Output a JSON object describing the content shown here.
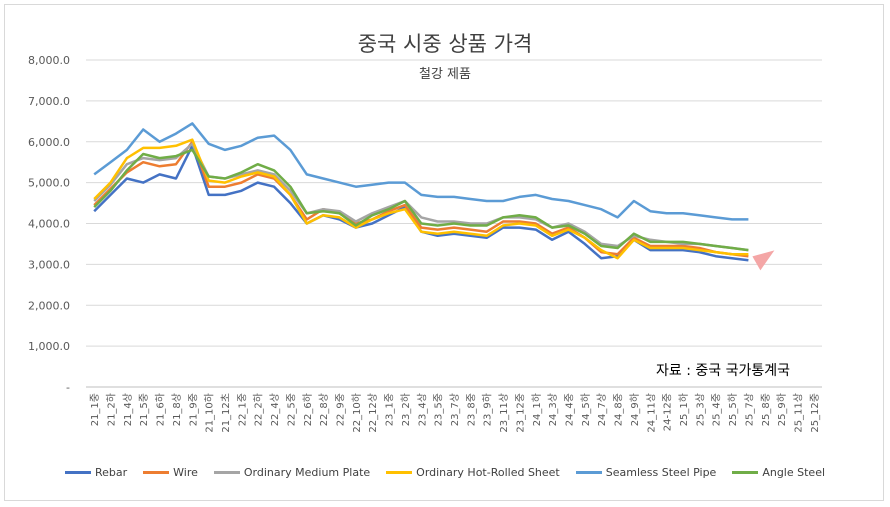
{
  "chart_data": {
    "type": "line",
    "title": "중국 시중 상품 가격",
    "subtitle": "철강 제품",
    "source_note": "자료 : 중국 국가통계국",
    "ylim": [
      0,
      8000
    ],
    "y_ticks": [
      "-",
      "1,000.0",
      "2,000.0",
      "3,000.0",
      "4,000.0",
      "5,000.0",
      "6,000.0",
      "7,000.0",
      "8,000.0"
    ],
    "grid": "horizontal",
    "legend_position": "bottom",
    "x_labels": [
      "21_1중",
      "21_2하",
      "21_4상",
      "21_5중",
      "21_6하",
      "21_8상",
      "21_9중",
      "21_10하",
      "21_12초",
      "22_1중",
      "22_2하",
      "22_4상",
      "22_5중",
      "22_6하",
      "22_8상",
      "22_9중",
      "22_10하",
      "22_12상",
      "23_1중",
      "23_2하",
      "23_4상",
      "23_5중",
      "23_7상",
      "23_8중",
      "23_9하",
      "23_11상",
      "23_12중",
      "24_1하",
      "24_3상",
      "24_4중",
      "24_5하",
      "24_7상",
      "24_8중",
      "24_9하",
      "24_11상",
      "24-12중",
      "25_1하",
      "25_3상",
      "25_4중",
      "25_5하",
      "25_7상",
      "25_8중",
      "25_9하",
      "25_11상",
      "25_12중"
    ],
    "series": [
      {
        "name": "Rebar",
        "color": "#4472C4",
        "values": [
          4300,
          4700,
          5100,
          5000,
          5200,
          5100,
          5900,
          4700,
          4700,
          4800,
          5000,
          4900,
          4500,
          4000,
          4200,
          4100,
          3900,
          4000,
          4200,
          4400,
          3800,
          3700,
          3750,
          3700,
          3650,
          3900,
          3900,
          3850,
          3600,
          3800,
          3500,
          3150,
          3200,
          3600,
          3350,
          3350,
          3350,
          3300,
          3200,
          3150,
          3100,
          null,
          null,
          null,
          null
        ]
      },
      {
        "name": "Wire",
        "color": "#ED7D31",
        "values": [
          4450,
          4850,
          5250,
          5500,
          5400,
          5450,
          6000,
          4900,
          4900,
          5000,
          5200,
          5100,
          4700,
          4100,
          4350,
          4250,
          4000,
          4100,
          4300,
          4450,
          3900,
          3850,
          3900,
          3850,
          3800,
          4050,
          4050,
          4000,
          3750,
          3900,
          3650,
          3300,
          3250,
          3650,
          3450,
          3450,
          3450,
          3400,
          3300,
          3250,
          3200,
          null,
          null,
          null,
          null
        ]
      },
      {
        "name": "Ordinary Medium Plate",
        "color": "#A5A5A5",
        "values": [
          4550,
          4950,
          5450,
          5600,
          5550,
          5600,
          5950,
          5150,
          5100,
          5200,
          5300,
          5200,
          4800,
          4250,
          4350,
          4300,
          4050,
          4250,
          4400,
          4550,
          4150,
          4050,
          4050,
          4000,
          4000,
          4150,
          4150,
          4100,
          3900,
          4000,
          3800,
          3500,
          3450,
          3700,
          3600,
          3550,
          3500,
          3500,
          3450,
          3400,
          3350,
          null,
          null,
          null,
          null
        ]
      },
      {
        "name": "Ordinary Hot-Rolled Sheet",
        "color": "#FFC000",
        "values": [
          4600,
          5000,
          5600,
          5850,
          5850,
          5900,
          6050,
          5050,
          5000,
          5150,
          5250,
          5150,
          4700,
          4000,
          4200,
          4150,
          3900,
          4100,
          4250,
          4350,
          3800,
          3750,
          3800,
          3750,
          3700,
          3950,
          4000,
          3950,
          3700,
          3850,
          3650,
          3350,
          3150,
          3600,
          3400,
          3400,
          3400,
          3350,
          3300,
          3250,
          3250,
          null,
          null,
          null,
          null
        ]
      },
      {
        "name": "Seamless Steel Pipe",
        "color": "#5B9BD5",
        "values": [
          5200,
          5500,
          5800,
          6300,
          6000,
          6200,
          6450,
          5950,
          5800,
          5900,
          6100,
          6150,
          5800,
          5200,
          5100,
          5000,
          4900,
          4950,
          5000,
          5000,
          4700,
          4650,
          4650,
          4600,
          4550,
          4550,
          4650,
          4700,
          4600,
          4550,
          4450,
          4350,
          4150,
          4550,
          4300,
          4250,
          4250,
          4200,
          4150,
          4100,
          4100,
          null,
          null,
          null,
          null
        ]
      },
      {
        "name": "Angle Steel",
        "color": "#70AD47",
        "values": [
          4400,
          4800,
          5300,
          5700,
          5600,
          5650,
          5800,
          5150,
          5100,
          5250,
          5450,
          5300,
          4900,
          4250,
          4300,
          4250,
          3950,
          4200,
          4350,
          4550,
          4000,
          3950,
          4000,
          3950,
          3950,
          4150,
          4200,
          4150,
          3900,
          3950,
          3750,
          3450,
          3400,
          3750,
          3550,
          3550,
          3550,
          3500,
          3450,
          3400,
          3350,
          null,
          null,
          null,
          null
        ]
      }
    ]
  }
}
